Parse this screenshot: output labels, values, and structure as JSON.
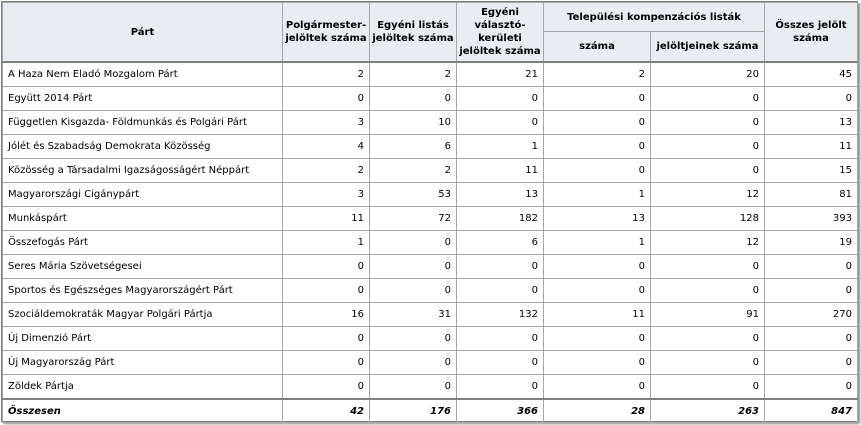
{
  "headers": {
    "party": "Párt",
    "mayor": "Polgármester-jelöltek száma",
    "individual_list": "Egyéni listás jelöltek száma",
    "district": "Egyéni választó-kerületi jelöltek száma",
    "compensation_group": "Települési kompenzációs listák",
    "comp_count": "száma",
    "comp_candidates": "jelöltjeinek száma",
    "total": "Összes jelölt száma"
  },
  "rows": [
    {
      "party": "A Haza Nem Eladó Mozgalom Párt",
      "mayor": "2",
      "individual": "2",
      "district": "21",
      "comp_count": "2",
      "comp_candidates": "20",
      "total": "45"
    },
    {
      "party": "Együtt 2014 Párt",
      "mayor": "0",
      "individual": "0",
      "district": "0",
      "comp_count": "0",
      "comp_candidates": "0",
      "total": "0"
    },
    {
      "party": "Független Kisgazda- Földmunkás és Polgári Párt",
      "mayor": "3",
      "individual": "10",
      "district": "0",
      "comp_count": "0",
      "comp_candidates": "0",
      "total": "13"
    },
    {
      "party": "Jólét és Szabadság Demokrata Közösség",
      "mayor": "4",
      "individual": "6",
      "district": "1",
      "comp_count": "0",
      "comp_candidates": "0",
      "total": "11"
    },
    {
      "party": "Közösség a Társadalmi Igazságosságért Néppárt",
      "mayor": "2",
      "individual": "2",
      "district": "11",
      "comp_count": "0",
      "comp_candidates": "0",
      "total": "15"
    },
    {
      "party": "Magyarországi Cigánypárt",
      "mayor": "3",
      "individual": "53",
      "district": "13",
      "comp_count": "1",
      "comp_candidates": "12",
      "total": "81"
    },
    {
      "party": "Munkáspárt",
      "mayor": "11",
      "individual": "72",
      "district": "182",
      "comp_count": "13",
      "comp_candidates": "128",
      "total": "393"
    },
    {
      "party": "Összefogás Párt",
      "mayor": "1",
      "individual": "0",
      "district": "6",
      "comp_count": "1",
      "comp_candidates": "12",
      "total": "19"
    },
    {
      "party": "Seres Mária Szövetségesei",
      "mayor": "0",
      "individual": "0",
      "district": "0",
      "comp_count": "0",
      "comp_candidates": "0",
      "total": "0"
    },
    {
      "party": "Sportos és Egészséges Magyarországért Párt",
      "mayor": "0",
      "individual": "0",
      "district": "0",
      "comp_count": "0",
      "comp_candidates": "0",
      "total": "0"
    },
    {
      "party": "Szociáldemokraták Magyar Polgári Pártja",
      "mayor": "16",
      "individual": "31",
      "district": "132",
      "comp_count": "11",
      "comp_candidates": "91",
      "total": "270"
    },
    {
      "party": "Új Dimenzió Párt",
      "mayor": "0",
      "individual": "0",
      "district": "0",
      "comp_count": "0",
      "comp_candidates": "0",
      "total": "0"
    },
    {
      "party": "Új Magyarország Párt",
      "mayor": "0",
      "individual": "0",
      "district": "0",
      "comp_count": "0",
      "comp_candidates": "0",
      "total": "0"
    },
    {
      "party": "Zöldek Pártja",
      "mayor": "0",
      "individual": "0",
      "district": "0",
      "comp_count": "0",
      "comp_candidates": "0",
      "total": "0"
    }
  ],
  "totals": {
    "label": "Összesen",
    "mayor": "42",
    "individual": "176",
    "district": "366",
    "comp_count": "28",
    "comp_candidates": "263",
    "total": "847"
  },
  "colors": {
    "header_background": "#e9ecf1",
    "grid_line": "#a6a6a6"
  }
}
